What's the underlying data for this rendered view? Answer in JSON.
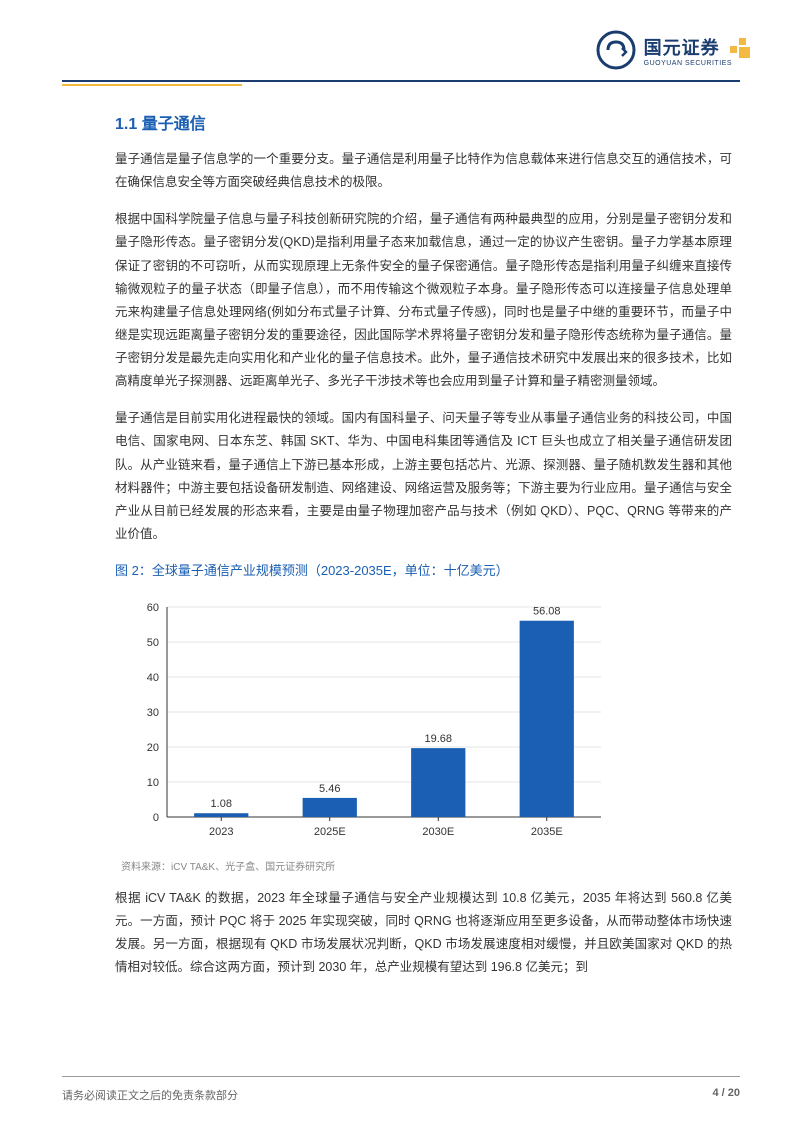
{
  "logo": {
    "cn": "国元证券",
    "en": "GUOYUAN SECURITIES",
    "circle_color": "#1a3c6e",
    "square_color": "#f4b942"
  },
  "section": {
    "number": "1.1",
    "title": "量子通信"
  },
  "paragraphs": {
    "p1": "量子通信是量子信息学的一个重要分支。量子通信是利用量子比特作为信息载体来进行信息交互的通信技术，可在确保信息安全等方面突破经典信息技术的极限。",
    "p2": "根据中国科学院量子信息与量子科技创新研究院的介绍，量子通信有两种最典型的应用，分别是量子密钥分发和量子隐形传态。量子密钥分发(QKD)是指利用量子态来加载信息，通过一定的协议产生密钥。量子力学基本原理保证了密钥的不可窃听，从而实现原理上无条件安全的量子保密通信。量子隐形传态是指利用量子纠缠来直接传输微观粒子的量子状态（即量子信息），而不用传输这个微观粒子本身。量子隐形传态可以连接量子信息处理单元来构建量子信息处理网络(例如分布式量子计算、分布式量子传感)，同时也是量子中继的重要环节，而量子中继是实现远距离量子密钥分发的重要途径，因此国际学术界将量子密钥分发和量子隐形传态统称为量子通信。量子密钥分发是最先走向实用化和产业化的量子信息技术。此外，量子通信技术研究中发展出来的很多技术，比如高精度单光子探测器、远距离单光子、多光子干涉技术等也会应用到量子计算和量子精密测量领域。",
    "p3": "量子通信是目前实用化进程最快的领域。国内有国科量子、问天量子等专业从事量子通信业务的科技公司，中国电信、国家电网、日本东芝、韩国 SKT、华为、中国电科集团等通信及 ICT 巨头也成立了相关量子通信研发团队。从产业链来看，量子通信上下游已基本形成，上游主要包括芯片、光源、探测器、量子随机数发生器和其他材料器件；中游主要包括设备研发制造、网络建设、网络运营及服务等；下游主要为行业应用。量子通信与安全产业从目前已经发展的形态来看，主要是由量子物理加密产品与技术（例如 QKD）、PQC、QRNG 等带来的产业价值。",
    "p4": "根据 iCV TA&K 的数据，2023 年全球量子通信与安全产业规模达到 10.8 亿美元，2035 年将达到 560.8 亿美元。一方面，预计 PQC 将于 2025 年实现突破，同时 QRNG 也将逐渐应用至更多设备，从而带动整体市场快速发展。另一方面，根据现有 QKD 市场发展状况判断，QKD 市场发展速度相对缓慢，并且欧美国家对 QKD 的热情相对较低。综合这两方面，预计到 2030 年，总产业规模有望达到 196.8 亿美元；到"
  },
  "chart": {
    "title": "图 2：全球量子通信产业规模预测（2023-2035E，单位：十亿美元）",
    "type": "bar",
    "categories": [
      "2023",
      "2025E",
      "2030E",
      "2035E"
    ],
    "values": [
      1.08,
      5.46,
      19.68,
      56.08
    ],
    "value_labels": [
      "1.08",
      "5.46",
      "19.68",
      "56.08"
    ],
    "bar_color": "#1a5fb4",
    "ylim": [
      0,
      60
    ],
    "ytick_step": 10,
    "yticks": [
      0,
      10,
      20,
      30,
      40,
      50,
      60
    ],
    "axis_color": "#333333",
    "grid_color": "#cccccc",
    "text_color": "#333333",
    "axis_fontsize": 11,
    "label_fontsize": 11,
    "bar_width": 0.5,
    "source": "资料来源：iCV TA&K、光子盒、国元证券研究所"
  },
  "footer": {
    "disclaimer": "请务必阅读正文之后的免责条款部分",
    "page": "4 / 20"
  },
  "colors": {
    "brand_blue": "#1a3c6e",
    "accent_yellow": "#f4b942",
    "heading_blue": "#1a5fb4",
    "body_text": "#333333",
    "footer_text": "#666666",
    "source_text": "#888888"
  }
}
